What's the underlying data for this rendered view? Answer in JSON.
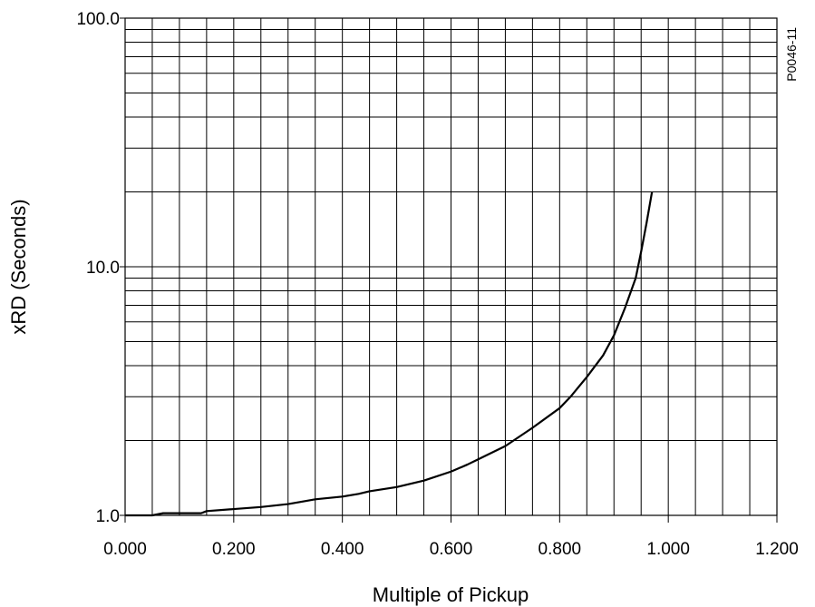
{
  "chart_data": {
    "type": "line",
    "xlabel": "Multiple of Pickup",
    "ylabel": "xRD (Seconds)",
    "figure_id": "P0046-11",
    "x_ticks": [
      "0.000",
      "0.200",
      "0.400",
      "0.600",
      "0.800",
      "1.000",
      "1.200"
    ],
    "y_ticks": [
      "1.0",
      "10.0",
      "100.0"
    ],
    "xlim": [
      0,
      1.2
    ],
    "ylim": [
      1,
      100
    ],
    "y_scale": "log",
    "grid": true,
    "series": [
      {
        "x": [
          0.0,
          0.05,
          0.07,
          0.14,
          0.15,
          0.2,
          0.25,
          0.3,
          0.33,
          0.35,
          0.4,
          0.43,
          0.45,
          0.5,
          0.55,
          0.6,
          0.63,
          0.65,
          0.7,
          0.75,
          0.8,
          0.82,
          0.85,
          0.88,
          0.9,
          0.92,
          0.94,
          0.95,
          0.96,
          0.97
        ],
        "y": [
          1.0,
          1.0,
          1.02,
          1.02,
          1.04,
          1.06,
          1.08,
          1.11,
          1.14,
          1.16,
          1.19,
          1.22,
          1.25,
          1.3,
          1.38,
          1.5,
          1.6,
          1.68,
          1.9,
          2.25,
          2.7,
          3.0,
          3.6,
          4.4,
          5.3,
          6.8,
          9.0,
          11.5,
          15.0,
          20.0
        ]
      }
    ]
  }
}
